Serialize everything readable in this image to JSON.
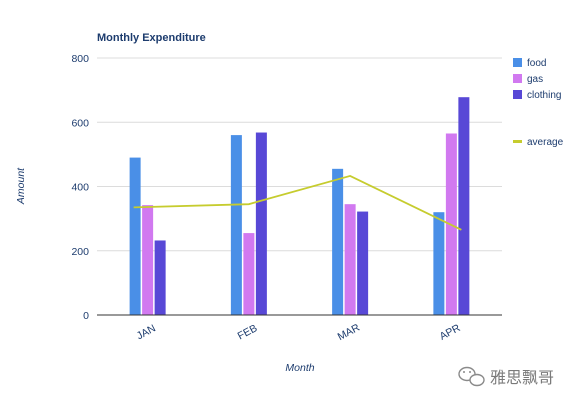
{
  "chart_data": {
    "type": "bar",
    "title": "Monthly Expenditure",
    "xlabel": "Month",
    "ylabel": "Amount",
    "categories": [
      "JAN",
      "FEB",
      "MAR",
      "APR"
    ],
    "ylim": [
      0,
      800
    ],
    "yticks": [
      "0",
      "200",
      "400",
      "600",
      "800"
    ],
    "grid": true,
    "legend_position": "right",
    "series": [
      {
        "name": "food",
        "kind": "bar",
        "color": "#4a8fe7",
        "values": [
          490,
          560,
          455,
          320
        ]
      },
      {
        "name": "gas",
        "kind": "bar",
        "color": "#d179f0",
        "values": [
          342,
          255,
          345,
          565
        ]
      },
      {
        "name": "clothing",
        "kind": "bar",
        "color": "#5848d6",
        "values": [
          232,
          568,
          322,
          678
        ]
      },
      {
        "name": "average",
        "kind": "line",
        "color": "#c6cc2e",
        "values": [
          335,
          345,
          433,
          265
        ]
      }
    ]
  },
  "watermark": {
    "text": "雅思飘哥",
    "icon": "wechat-icon"
  }
}
